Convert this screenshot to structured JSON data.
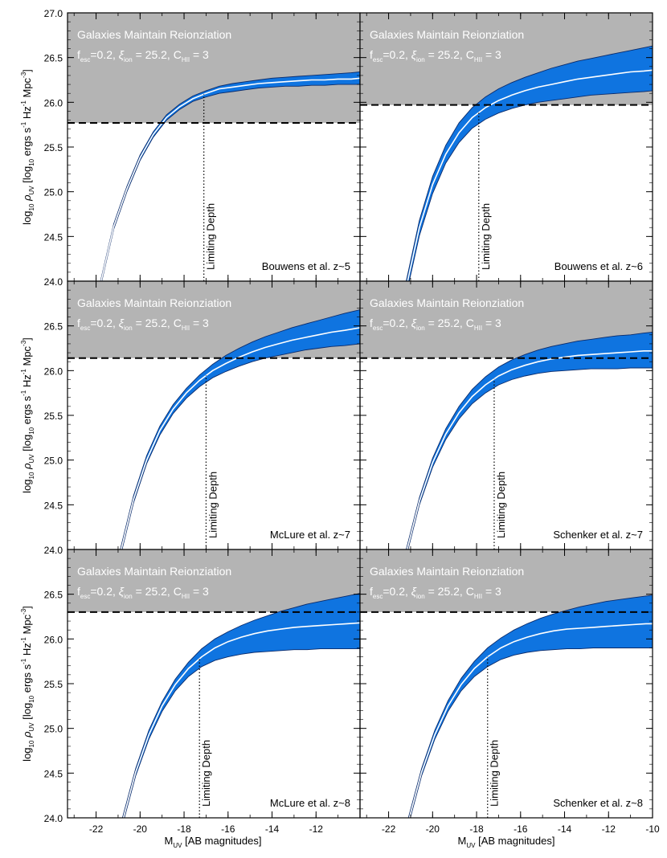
{
  "figure": {
    "xlabel": {
      "main": "M",
      "sub": "UV",
      "rest": " [AB magnitudes]"
    },
    "ylabel": {
      "log": "log",
      "log_sub": "10",
      "rho": "ρ",
      "rho_sub": "UV",
      "b1": " [log",
      "b1_sub": "10",
      "b2": " ergs s",
      "b2_sup": "-1",
      "b3": " Hz",
      "b3_sup": "-1",
      "b4": " Mpc",
      "b4_sup": "-3",
      "b5": "]"
    },
    "band_title": "Galaxies Maintain Reionziation",
    "band_params": {
      "f": "f",
      "f_sub": "esc",
      "f_val": "=0.2, ",
      "xi": "ξ",
      "xi_sub": "ion",
      "xi_val": " = 25.2, ",
      "c": "C",
      "c_sub": "HII",
      "c_val": " = 3"
    },
    "limit_label": "Limiting Depth",
    "colors": {
      "band": "#b4b4b4",
      "fill": "#0f74e0",
      "edge": "#0a2a6a",
      "line": "#ffffff"
    }
  },
  "chart_data": [
    {
      "type": "area",
      "panel_label": "Bouwens et al. z~5",
      "xlim": [
        -23.3,
        -10
      ],
      "ylim": [
        24,
        27
      ],
      "x_ticks": [
        -22,
        -20,
        -18,
        -16,
        -14,
        -12,
        -10
      ],
      "y_ticks": [
        24.0,
        24.5,
        25.0,
        25.5,
        26.0,
        26.5,
        27.0
      ],
      "y_tick_labels": [
        "24.0",
        "24.5",
        "25.0",
        "25.5",
        "26.0",
        "26.5",
        "27.0"
      ],
      "x_tick_labels": [],
      "threshold": 25.77,
      "limiting_mag": -17.1,
      "x": [
        -21.8,
        -21.2,
        -20.6,
        -20.0,
        -19.4,
        -18.8,
        -18.2,
        -17.6,
        -17.0,
        -16.4,
        -15.8,
        -15.2,
        -14.6,
        -14.0,
        -13.4,
        -12.8,
        -12.2,
        -11.6,
        -11.0,
        -10.4,
        -10.0
      ],
      "upper": [
        24.0,
        24.64,
        25.06,
        25.41,
        25.67,
        25.86,
        25.98,
        26.07,
        26.13,
        26.18,
        26.21,
        26.23,
        26.25,
        26.27,
        26.28,
        26.29,
        26.3,
        26.31,
        26.32,
        26.33,
        26.34
      ],
      "central": [
        23.97,
        24.61,
        25.03,
        25.38,
        25.64,
        25.83,
        25.95,
        26.04,
        26.1,
        26.15,
        26.17,
        26.19,
        26.21,
        26.22,
        26.23,
        26.24,
        26.25,
        26.25,
        26.26,
        26.26,
        26.27
      ],
      "lower": [
        23.94,
        24.58,
        25.0,
        25.35,
        25.61,
        25.8,
        25.92,
        26.01,
        26.06,
        26.1,
        26.12,
        26.14,
        26.16,
        26.17,
        26.18,
        26.18,
        26.19,
        26.19,
        26.2,
        26.2,
        26.2
      ]
    },
    {
      "type": "area",
      "panel_label": "Bouwens et al. z~6",
      "xlim": [
        -23.3,
        -10
      ],
      "ylim": [
        24,
        27
      ],
      "x_ticks": [
        -22,
        -20,
        -18,
        -16,
        -14,
        -12,
        -10
      ],
      "y_ticks": [
        24.0,
        24.5,
        25.0,
        25.5,
        26.0,
        26.5,
        27.0
      ],
      "y_tick_labels": [],
      "x_tick_labels": [],
      "threshold": 25.97,
      "limiting_mag": -17.9,
      "x": [
        -21.2,
        -20.6,
        -20.0,
        -19.4,
        -18.8,
        -18.2,
        -17.6,
        -17.0,
        -16.4,
        -15.8,
        -15.2,
        -14.6,
        -14.0,
        -13.4,
        -12.8,
        -12.2,
        -11.6,
        -11.0,
        -10.4,
        -10.0
      ],
      "upper": [
        24.0,
        24.68,
        25.17,
        25.52,
        25.77,
        25.94,
        26.06,
        26.15,
        26.22,
        26.28,
        26.33,
        26.38,
        26.42,
        26.46,
        26.49,
        26.52,
        26.55,
        26.58,
        26.61,
        26.63
      ],
      "central": [
        23.93,
        24.6,
        25.08,
        25.42,
        25.66,
        25.83,
        25.94,
        26.02,
        26.08,
        26.13,
        26.17,
        26.2,
        26.23,
        26.26,
        26.28,
        26.3,
        26.32,
        26.34,
        26.35,
        26.36
      ],
      "lower": [
        23.85,
        24.51,
        24.98,
        25.32,
        25.55,
        25.71,
        25.81,
        25.88,
        25.93,
        25.97,
        26.0,
        26.02,
        26.04,
        26.06,
        26.08,
        26.09,
        26.1,
        26.11,
        26.12,
        26.13
      ]
    },
    {
      "type": "area",
      "panel_label": "McLure et al. z~7",
      "xlim": [
        -23.3,
        -10
      ],
      "ylim": [
        24,
        27
      ],
      "x_ticks": [
        -22,
        -20,
        -18,
        -16,
        -14,
        -12,
        -10
      ],
      "y_ticks": [
        24.0,
        24.5,
        25.0,
        25.5,
        26.0,
        26.5
      ],
      "y_tick_labels": [
        "24.0",
        "24.5",
        "25.0",
        "25.5",
        "26.0",
        "26.5"
      ],
      "x_tick_labels": [],
      "threshold": 26.14,
      "limiting_mag": -17.0,
      "x": [
        -20.9,
        -20.3,
        -19.7,
        -19.1,
        -18.5,
        -17.9,
        -17.3,
        -16.7,
        -16.1,
        -15.5,
        -14.9,
        -14.3,
        -13.7,
        -13.1,
        -12.5,
        -11.9,
        -11.3,
        -10.7,
        -10.0
      ],
      "upper": [
        24.0,
        24.6,
        25.05,
        25.38,
        25.62,
        25.8,
        25.95,
        26.07,
        26.17,
        26.25,
        26.32,
        26.38,
        26.43,
        26.48,
        26.52,
        26.56,
        26.6,
        26.64,
        26.68
      ],
      "central": [
        23.96,
        24.56,
        25.0,
        25.33,
        25.57,
        25.75,
        25.89,
        26.0,
        26.08,
        26.15,
        26.21,
        26.26,
        26.3,
        26.34,
        26.37,
        26.4,
        26.43,
        26.45,
        26.48
      ],
      "lower": [
        23.92,
        24.52,
        24.96,
        25.28,
        25.52,
        25.69,
        25.82,
        25.92,
        25.99,
        26.05,
        26.1,
        26.14,
        26.17,
        26.2,
        26.23,
        26.25,
        26.27,
        26.28,
        26.3
      ]
    },
    {
      "type": "area",
      "panel_label": "Schenker et al. z~7",
      "xlim": [
        -23.3,
        -10
      ],
      "ylim": [
        24,
        27
      ],
      "x_ticks": [
        -22,
        -20,
        -18,
        -16,
        -14,
        -12,
        -10
      ],
      "y_ticks": [
        24.0,
        24.5,
        25.0,
        25.5,
        26.0,
        26.5
      ],
      "y_tick_labels": [],
      "x_tick_labels": [],
      "threshold": 26.14,
      "limiting_mag": -17.2,
      "x": [
        -21.2,
        -20.6,
        -20.0,
        -19.4,
        -18.8,
        -18.2,
        -17.6,
        -17.0,
        -16.4,
        -15.8,
        -15.2,
        -14.6,
        -14.0,
        -13.4,
        -12.8,
        -12.2,
        -11.6,
        -11.0,
        -10.4,
        -10.0
      ],
      "upper": [
        24.0,
        24.58,
        25.02,
        25.35,
        25.6,
        25.79,
        25.93,
        26.04,
        26.12,
        26.18,
        26.23,
        26.27,
        26.3,
        26.33,
        26.35,
        26.37,
        26.39,
        26.4,
        26.42,
        26.43
      ],
      "central": [
        23.96,
        24.54,
        24.97,
        25.29,
        25.53,
        25.71,
        25.84,
        25.94,
        26.01,
        26.06,
        26.1,
        26.13,
        26.15,
        26.17,
        26.18,
        26.19,
        26.2,
        26.21,
        26.22,
        26.22
      ],
      "lower": [
        23.92,
        24.5,
        24.92,
        25.23,
        25.46,
        25.63,
        25.75,
        25.84,
        25.9,
        25.94,
        25.97,
        25.99,
        26.0,
        26.01,
        26.02,
        26.02,
        26.02,
        26.03,
        26.03,
        26.03
      ]
    },
    {
      "type": "area",
      "panel_label": "McLure et al. z~8",
      "xlim": [
        -23.3,
        -10
      ],
      "ylim": [
        24,
        27
      ],
      "x_ticks": [
        -22,
        -20,
        -18,
        -16,
        -14,
        -12,
        -10
      ],
      "y_ticks": [
        24.0,
        24.5,
        25.0,
        25.5,
        26.0,
        26.5
      ],
      "y_tick_labels": [
        "24.0",
        "24.5",
        "25.0",
        "25.5",
        "26.0",
        "26.5"
      ],
      "x_tick_labels": [
        "-22",
        "-20",
        "-18",
        "-16",
        "-14",
        "-12"
      ],
      "threshold": 26.3,
      "limiting_mag": -17.3,
      "x": [
        -20.8,
        -20.2,
        -19.6,
        -19.0,
        -18.4,
        -17.8,
        -17.2,
        -16.6,
        -16.0,
        -15.4,
        -14.8,
        -14.2,
        -13.6,
        -13.0,
        -12.4,
        -11.8,
        -11.2,
        -10.6,
        -10.0
      ],
      "upper": [
        24.0,
        24.55,
        24.98,
        25.3,
        25.55,
        25.74,
        25.89,
        26.0,
        26.08,
        26.15,
        26.21,
        26.26,
        26.31,
        26.35,
        26.39,
        26.42,
        26.45,
        26.48,
        26.51
      ],
      "central": [
        23.96,
        24.51,
        24.93,
        25.25,
        25.49,
        25.67,
        25.8,
        25.9,
        25.97,
        26.02,
        26.06,
        26.09,
        26.11,
        26.13,
        26.14,
        26.15,
        26.16,
        26.17,
        26.18
      ],
      "lower": [
        23.92,
        24.47,
        24.88,
        25.19,
        25.42,
        25.58,
        25.69,
        25.76,
        25.8,
        25.83,
        25.85,
        25.86,
        25.87,
        25.88,
        25.88,
        25.89,
        25.89,
        25.89,
        25.89
      ]
    },
    {
      "type": "area",
      "panel_label": "Schenker et al. z~8",
      "xlim": [
        -23.3,
        -10
      ],
      "ylim": [
        24,
        27
      ],
      "x_ticks": [
        -22,
        -20,
        -18,
        -16,
        -14,
        -12,
        -10
      ],
      "y_ticks": [
        24.0,
        24.5,
        25.0,
        25.5,
        26.0,
        26.5
      ],
      "y_tick_labels": [],
      "x_tick_labels": [
        "-22",
        "-20",
        "-18",
        "-16",
        "-14",
        "-12",
        "-10"
      ],
      "threshold": 26.3,
      "limiting_mag": -17.5,
      "x": [
        -21.1,
        -20.5,
        -19.9,
        -19.3,
        -18.7,
        -18.1,
        -17.5,
        -16.9,
        -16.3,
        -15.7,
        -15.1,
        -14.5,
        -13.9,
        -13.3,
        -12.7,
        -12.1,
        -11.5,
        -10.9,
        -10.3,
        -10.0
      ],
      "upper": [
        24.0,
        24.55,
        24.98,
        25.31,
        25.56,
        25.75,
        25.9,
        26.01,
        26.1,
        26.17,
        26.23,
        26.28,
        26.32,
        26.36,
        26.39,
        26.42,
        26.44,
        26.46,
        26.48,
        26.49
      ],
      "central": [
        23.96,
        24.51,
        24.93,
        25.25,
        25.49,
        25.67,
        25.8,
        25.9,
        25.97,
        26.02,
        26.06,
        26.09,
        26.11,
        26.12,
        26.13,
        26.14,
        26.15,
        26.16,
        26.17,
        26.17
      ],
      "lower": [
        23.92,
        24.47,
        24.88,
        25.19,
        25.42,
        25.58,
        25.69,
        25.77,
        25.82,
        25.85,
        25.87,
        25.88,
        25.89,
        25.89,
        25.9,
        25.9,
        25.9,
        25.9,
        25.9,
        25.9
      ]
    }
  ]
}
